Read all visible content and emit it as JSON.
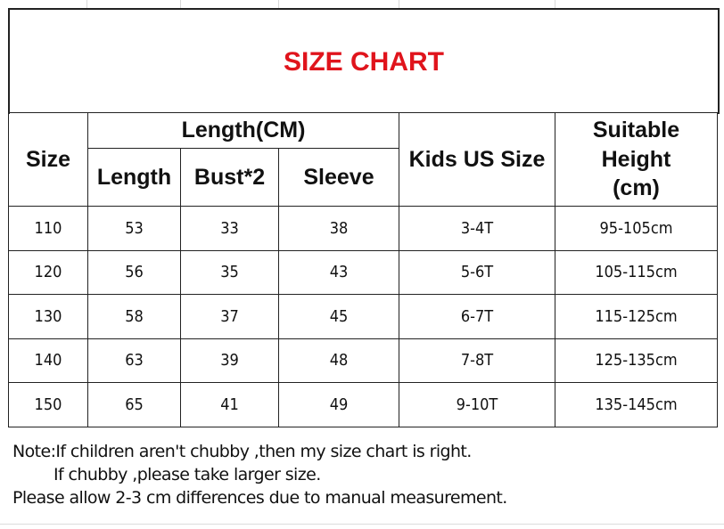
{
  "title": "SIZE CHART",
  "table": {
    "headers": {
      "size": "Size",
      "group": "Length(CM)",
      "length": "Length",
      "bust": "Bust*2",
      "sleeve": "Sleeve",
      "kids_us": "Kids US Size",
      "height_line1": "Suitable",
      "height_line2": "Height",
      "height_line3": "(cm)"
    },
    "rows": [
      [
        "110",
        "53",
        "33",
        "38",
        "3-4T",
        "95-105cm"
      ],
      [
        "120",
        "56",
        "35",
        "43",
        "5-6T",
        "105-115cm"
      ],
      [
        "130",
        "58",
        "37",
        "45",
        "6-7T",
        "115-125cm"
      ],
      [
        "140",
        "63",
        "39",
        "48",
        "7-8T",
        "125-135cm"
      ],
      [
        "150",
        "65",
        "41",
        "49",
        "9-10T",
        "135-145cm"
      ]
    ]
  },
  "notes": [
    "Note:If children aren't chubby ,then my size chart is right.",
    "If chubby ,please take larger size.",
    "Please allow 2-3 cm differences due to manual measurement."
  ],
  "colors": {
    "title": "#e0141c",
    "border": "#222222"
  }
}
